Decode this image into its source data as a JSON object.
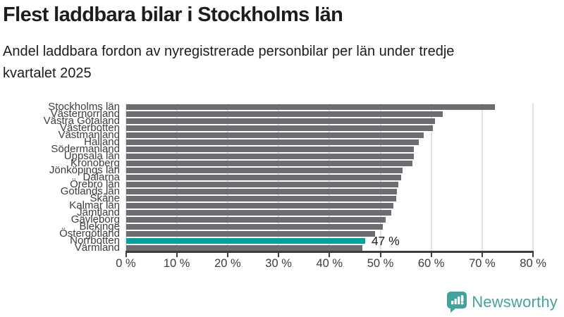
{
  "header": {
    "title": "Flest laddbara bilar i Stockholms län",
    "subtitle": "Andel laddbara fordon av nyregistrerade personbilar per län under tredje kvartalet 2025"
  },
  "chart_data": {
    "type": "bar",
    "orientation": "horizontal",
    "categories": [
      "Stockholms län",
      "Västernorrland",
      "Västra Götaland",
      "Västerbotten",
      "Västmanland",
      "Halland",
      "Södermanland",
      "Uppsala län",
      "Kronoberg",
      "Jönköpings län",
      "Dalarna",
      "Örebro län",
      "Gotlands län",
      "Skåne",
      "Kalmar län",
      "Jämtland",
      "Gävleborg",
      "Blekinge",
      "Östergötland",
      "Norrbotten",
      "Värmland"
    ],
    "values": [
      72.5,
      62.2,
      60.8,
      60.3,
      58.5,
      57.5,
      56.6,
      56.6,
      56.3,
      54.3,
      54.1,
      53.5,
      53.3,
      53.1,
      52.6,
      52.1,
      51.1,
      50.5,
      49.0,
      47.0,
      46.5
    ],
    "unit": "%",
    "highlight": {
      "category": "Norrbotten",
      "index": 19,
      "label": "47 %"
    },
    "xlim": [
      0,
      80
    ],
    "x_ticks": [
      0,
      10,
      20,
      30,
      40,
      50,
      60,
      70,
      80
    ],
    "x_tick_labels": [
      "0 %",
      "10 %",
      "20 %",
      "30 %",
      "40 %",
      "50 %",
      "60 %",
      "70 %",
      "80 %"
    ],
    "grid": true,
    "legend": "none",
    "colors": {
      "bar": "#6c6c71",
      "highlight": "#00a39b",
      "axis": "#3d3d3d",
      "gridline": "#e2e2e2",
      "text": "#1d1d1b"
    }
  },
  "footer": {
    "brand": "Newsworthy",
    "brand_color": "#43a39c",
    "logo_icon": "newsworthy-bubble-chart-icon"
  }
}
